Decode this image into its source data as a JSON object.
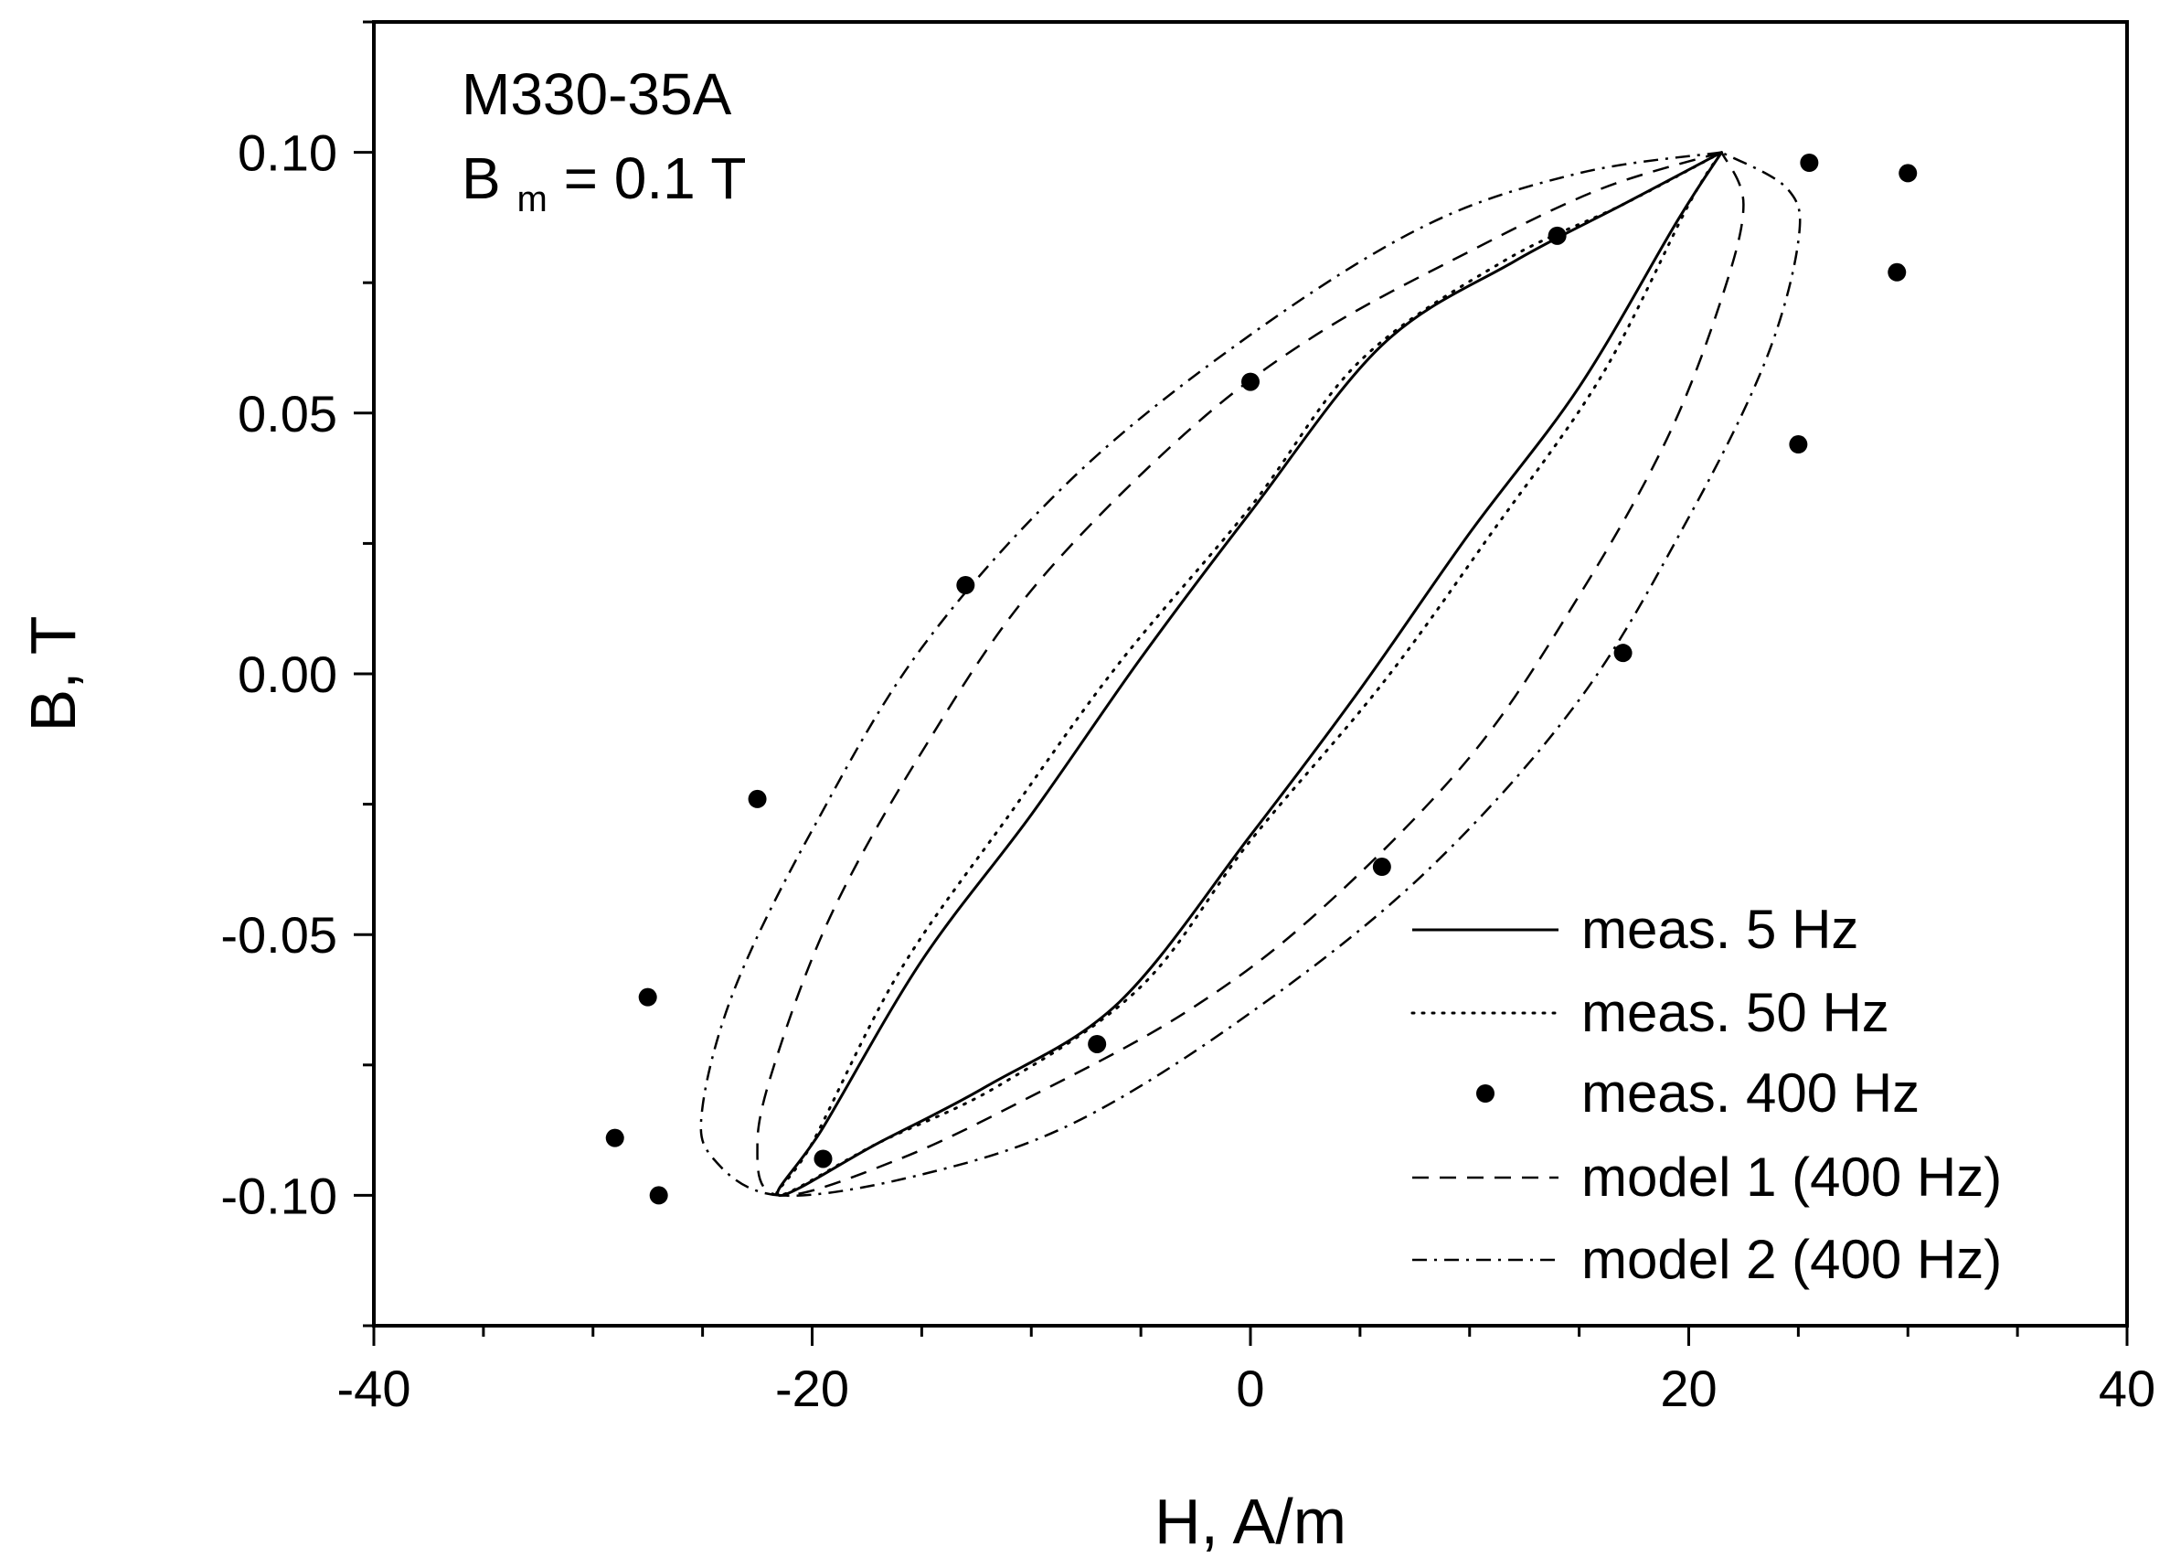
{
  "chart_data": {
    "type": "line",
    "title": "",
    "xlabel": "H, A/m",
    "ylabel": "B, T",
    "xlim": [
      -40,
      40
    ],
    "ylim": [
      -0.125,
      0.125
    ],
    "xticks": [
      -40,
      -20,
      0,
      20,
      40
    ],
    "xtick_labels": [
      "-40",
      "-20",
      "0",
      "20",
      "40"
    ],
    "yticks": [
      -0.1,
      -0.05,
      0.0,
      0.05,
      0.1
    ],
    "ytick_labels": [
      "-0.10",
      "-0.05",
      "0.00",
      "0.05",
      "0.10"
    ],
    "grid": false,
    "annotation": {
      "line1": "M330-35A",
      "line2_prefix": "B",
      "line2_subscript": "m",
      "line2_suffix": " = 0.1 T"
    },
    "legend_position": "bottom-right",
    "series": [
      {
        "name": "meas. 5 Hz",
        "style": "solid",
        "points": [
          [
            21.5,
            0.1
          ],
          [
            17,
            0.09
          ],
          [
            12,
            0.079
          ],
          [
            6,
            0.063
          ],
          [
            0,
            0.031
          ],
          [
            -5,
            0.003
          ],
          [
            -10,
            -0.027
          ],
          [
            -15,
            -0.055
          ],
          [
            -19.5,
            -0.087
          ],
          [
            -21.5,
            -0.1
          ],
          [
            -17,
            -0.09
          ],
          [
            -12,
            -0.079
          ],
          [
            -6,
            -0.063
          ],
          [
            0,
            -0.031
          ],
          [
            5,
            -0.003
          ],
          [
            10,
            0.027
          ],
          [
            15,
            0.055
          ],
          [
            19.5,
            0.087
          ],
          [
            21.5,
            0.1
          ]
        ]
      },
      {
        "name": "meas. 50 Hz",
        "style": "dotted",
        "points": [
          [
            21.5,
            0.1
          ],
          [
            17,
            0.09
          ],
          [
            11.5,
            0.079
          ],
          [
            5,
            0.06
          ],
          [
            0,
            0.032
          ],
          [
            -6,
            0.002
          ],
          [
            -11,
            -0.027
          ],
          [
            -16,
            -0.057
          ],
          [
            -20,
            -0.09
          ],
          [
            -21.5,
            -0.1
          ],
          [
            -17,
            -0.09
          ],
          [
            -11.5,
            -0.079
          ],
          [
            -5,
            -0.06
          ],
          [
            0,
            -0.032
          ],
          [
            6,
            -0.002
          ],
          [
            11,
            0.027
          ],
          [
            16,
            0.057
          ],
          [
            20,
            0.09
          ],
          [
            21.5,
            0.1
          ]
        ]
      },
      {
        "name": "meas. 400 Hz",
        "style": "markers",
        "points": [
          [
            25.5,
            0.098
          ],
          [
            30,
            0.096
          ],
          [
            29.5,
            0.077
          ],
          [
            25,
            0.044
          ],
          [
            17,
            0.004
          ],
          [
            6,
            -0.037
          ],
          [
            -7,
            -0.071
          ],
          [
            -19.5,
            -0.093
          ],
          [
            -27,
            -0.1
          ],
          [
            -29,
            -0.089
          ],
          [
            -27.5,
            -0.062
          ],
          [
            -22.5,
            -0.024
          ],
          [
            -13,
            0.017
          ],
          [
            0,
            0.056
          ],
          [
            14,
            0.084
          ]
        ]
      },
      {
        "name": "model 1 (400 Hz)",
        "style": "dashed",
        "points": [
          [
            21.5,
            0.1
          ],
          [
            16,
            0.093
          ],
          [
            10,
            0.081
          ],
          [
            3,
            0.065
          ],
          [
            -3,
            0.046
          ],
          [
            -10,
            0.016
          ],
          [
            -15,
            -0.015
          ],
          [
            -19,
            -0.045
          ],
          [
            -21.5,
            -0.072
          ],
          [
            -22.5,
            -0.09
          ],
          [
            -21.5,
            -0.1
          ],
          [
            -16,
            -0.093
          ],
          [
            -10,
            -0.081
          ],
          [
            -3,
            -0.065
          ],
          [
            3,
            -0.046
          ],
          [
            10,
            -0.016
          ],
          [
            15,
            0.015
          ],
          [
            19,
            0.045
          ],
          [
            21.5,
            0.072
          ],
          [
            22.5,
            0.09
          ],
          [
            21.5,
            0.1
          ]
        ]
      },
      {
        "name": "model 2 (400 Hz)",
        "style": "dashdot",
        "points": [
          [
            21.5,
            0.1
          ],
          [
            15,
            0.096
          ],
          [
            8,
            0.086
          ],
          [
            0,
            0.065
          ],
          [
            -8,
            0.038
          ],
          [
            -15,
            0.005
          ],
          [
            -20,
            -0.03
          ],
          [
            -23.5,
            -0.06
          ],
          [
            -25,
            -0.083
          ],
          [
            -24.5,
            -0.093
          ],
          [
            -21.5,
            -0.1
          ],
          [
            -15,
            -0.096
          ],
          [
            -8,
            -0.086
          ],
          [
            0,
            -0.065
          ],
          [
            8,
            -0.038
          ],
          [
            15,
            -0.005
          ],
          [
            20,
            0.03
          ],
          [
            23.5,
            0.06
          ],
          [
            25,
            0.083
          ],
          [
            24.5,
            0.093
          ],
          [
            21.5,
            0.1
          ]
        ]
      }
    ]
  }
}
